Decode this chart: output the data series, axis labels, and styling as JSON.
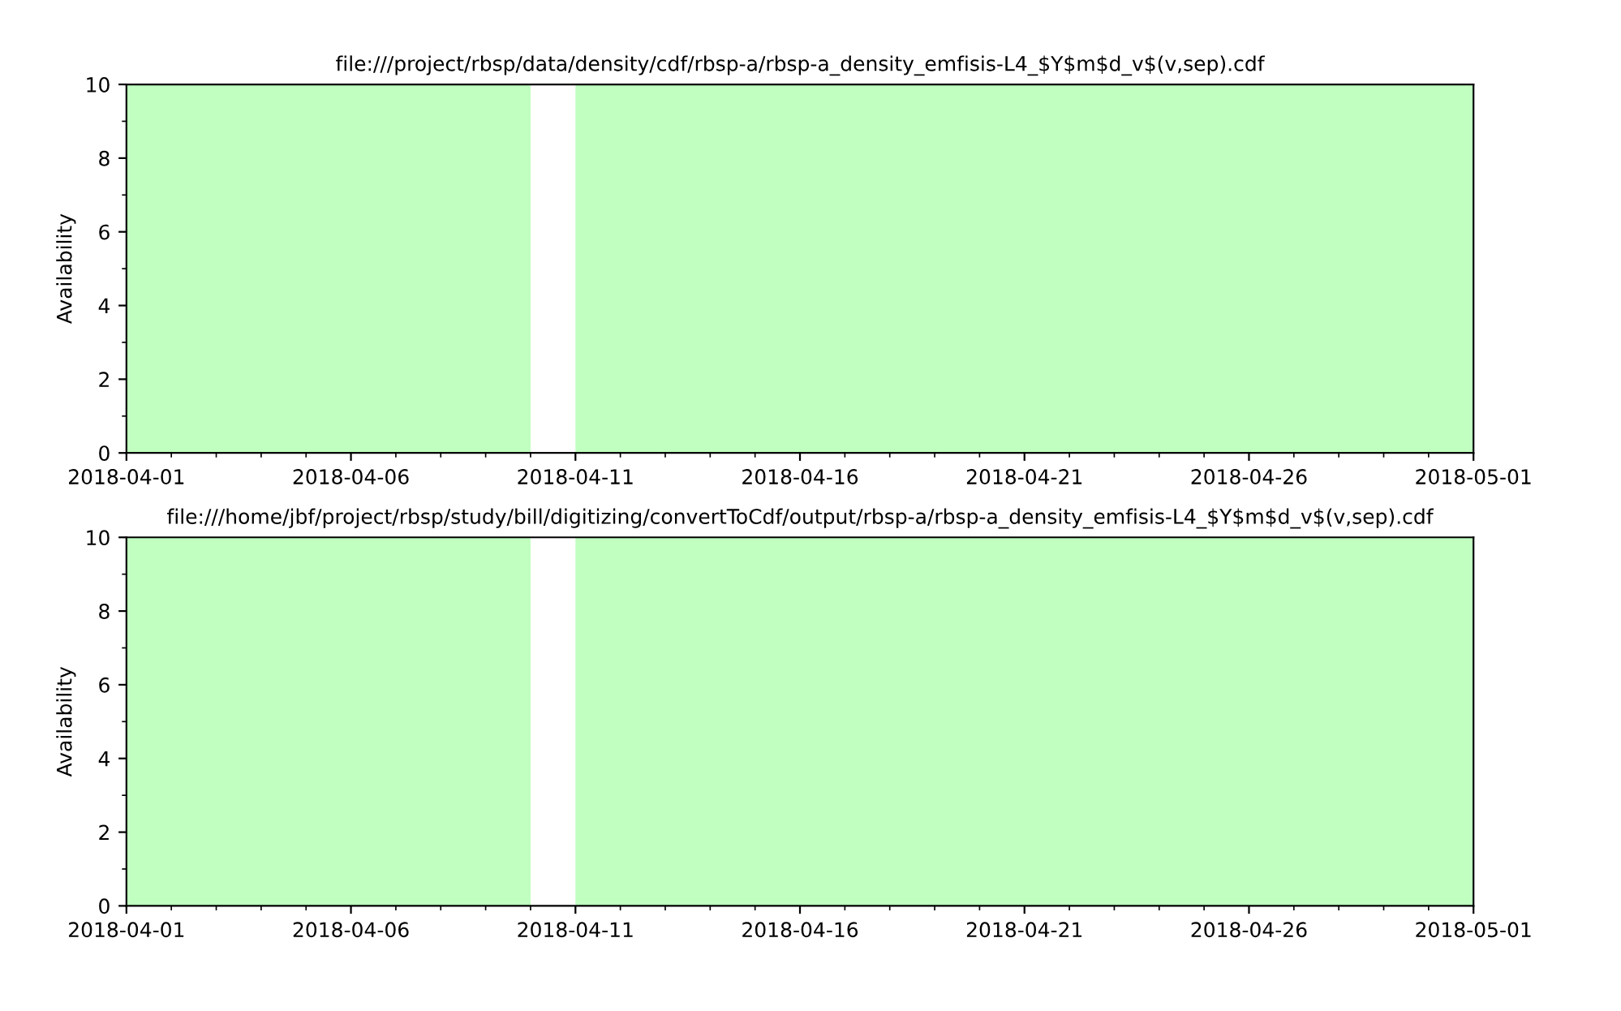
{
  "chart_data": [
    {
      "type": "area",
      "title": "file:///project/rbsp/data/density/cdf/rbsp-a/rbsp-a_density_emfisis-L4_$Y$m$d_v$(v,sep).cdf",
      "ylabel": "Availability",
      "x": [
        "2018-04-01",
        "2018-04-02",
        "2018-04-03",
        "2018-04-04",
        "2018-04-05",
        "2018-04-06",
        "2018-04-07",
        "2018-04-08",
        "2018-04-09",
        "2018-04-10",
        "2018-04-11",
        "2018-04-12",
        "2018-04-13",
        "2018-04-14",
        "2018-04-15",
        "2018-04-16",
        "2018-04-17",
        "2018-04-18",
        "2018-04-19",
        "2018-04-20",
        "2018-04-21",
        "2018-04-22",
        "2018-04-23",
        "2018-04-24",
        "2018-04-25",
        "2018-04-26",
        "2018-04-27",
        "2018-04-28",
        "2018-04-29",
        "2018-04-30",
        "2018-05-01"
      ],
      "values": [
        10,
        10,
        10,
        10,
        10,
        10,
        10,
        10,
        10,
        null,
        10,
        10,
        10,
        10,
        10,
        10,
        10,
        10,
        10,
        10,
        10,
        10,
        10,
        10,
        10,
        10,
        10,
        10,
        10,
        10,
        10
      ],
      "color": "#c0ffc0",
      "xlim": [
        "2018-04-01",
        "2018-05-01"
      ],
      "xticks": [
        "2018-04-01",
        "2018-04-06",
        "2018-04-11",
        "2018-04-16",
        "2018-04-21",
        "2018-04-26",
        "2018-05-01"
      ],
      "ylim": [
        0,
        10
      ],
      "yticks": [
        0,
        2,
        4,
        6,
        8,
        10
      ],
      "grid": false
    },
    {
      "type": "area",
      "title": "file:///home/jbf/project/rbsp/study/bill/digitizing/convertToCdf/output/rbsp-a/rbsp-a_density_emfisis-L4_$Y$m$d_v$(v,sep).cdf",
      "ylabel": "Availability",
      "x": [
        "2018-04-01",
        "2018-04-02",
        "2018-04-03",
        "2018-04-04",
        "2018-04-05",
        "2018-04-06",
        "2018-04-07",
        "2018-04-08",
        "2018-04-09",
        "2018-04-10",
        "2018-04-11",
        "2018-04-12",
        "2018-04-13",
        "2018-04-14",
        "2018-04-15",
        "2018-04-16",
        "2018-04-17",
        "2018-04-18",
        "2018-04-19",
        "2018-04-20",
        "2018-04-21",
        "2018-04-22",
        "2018-04-23",
        "2018-04-24",
        "2018-04-25",
        "2018-04-26",
        "2018-04-27",
        "2018-04-28",
        "2018-04-29",
        "2018-04-30",
        "2018-05-01"
      ],
      "values": [
        10,
        10,
        10,
        10,
        10,
        10,
        10,
        10,
        10,
        null,
        10,
        10,
        10,
        10,
        10,
        10,
        10,
        10,
        10,
        10,
        10,
        10,
        10,
        10,
        10,
        10,
        10,
        10,
        10,
        10,
        10
      ],
      "color": "#c0ffc0",
      "xlim": [
        "2018-04-01",
        "2018-05-01"
      ],
      "xticks": [
        "2018-04-01",
        "2018-04-06",
        "2018-04-11",
        "2018-04-16",
        "2018-04-21",
        "2018-04-26",
        "2018-05-01"
      ],
      "ylim": [
        0,
        10
      ],
      "yticks": [
        0,
        2,
        4,
        6,
        8,
        10
      ],
      "grid": false
    }
  ]
}
